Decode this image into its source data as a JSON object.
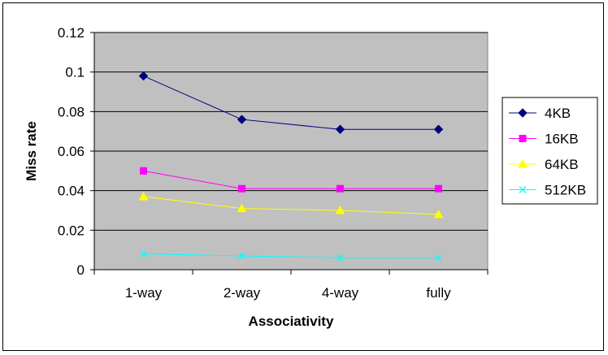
{
  "chart_data": {
    "type": "line",
    "xlabel": "Associativity",
    "ylabel": "Miss rate",
    "categories": [
      "1-way",
      "2-way",
      "4-way",
      "fully"
    ],
    "ylim": [
      0,
      0.12
    ],
    "yticks": [
      "0",
      "0.02",
      "0.04",
      "0.06",
      "0.08",
      "0.1",
      "0.12"
    ],
    "grid": true,
    "legend_position": "right",
    "plot_background": "#c0c0c0",
    "series": [
      {
        "name": "4KB",
        "values": [
          0.098,
          0.076,
          0.071,
          0.071
        ],
        "color": "#000080",
        "marker": "diamond"
      },
      {
        "name": "16KB",
        "values": [
          0.05,
          0.041,
          0.041,
          0.041
        ],
        "color": "#ff00ff",
        "marker": "square"
      },
      {
        "name": "64KB",
        "values": [
          0.037,
          0.031,
          0.03,
          0.028
        ],
        "color": "#ffff00",
        "marker": "triangle"
      },
      {
        "name": "512KB",
        "values": [
          0.008,
          0.007,
          0.006,
          0.006
        ],
        "color": "#00ffff",
        "marker": "x"
      }
    ]
  }
}
